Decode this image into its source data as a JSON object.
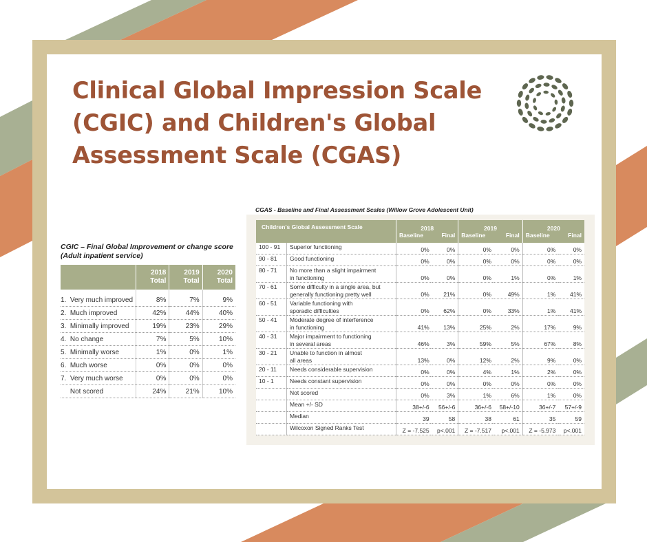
{
  "title": "Clinical Global Impression Scale (CGIC) and Children's Global Assessment Scale (CGAS)",
  "colors": {
    "title": "#9e5436",
    "frame": "#d3c49a",
    "table_header": "#a8ae8a",
    "stripe_orange": "#d88a5e",
    "stripe_green": "#a8b093",
    "logo": "#5e6650"
  },
  "logo_icon": "leaf-wreath-icon",
  "cgic": {
    "caption_line1": "CGIC – Final Global Improvement or change score",
    "caption_line2": "(Adult inpatient service)",
    "headers": [
      {
        "year": "2018",
        "label": "Total"
      },
      {
        "year": "2019",
        "label": "Total"
      },
      {
        "year": "2020",
        "label": "Total"
      }
    ],
    "rows": [
      {
        "label": "1.  Very much improved",
        "values": [
          "8%",
          "7%",
          "9%"
        ]
      },
      {
        "label": "2.  Much improved",
        "values": [
          "42%",
          "44%",
          "40%"
        ]
      },
      {
        "label": "3.  Minimally improved",
        "values": [
          "19%",
          "23%",
          "29%"
        ]
      },
      {
        "label": "4.  No change",
        "values": [
          "7%",
          "5%",
          "10%"
        ]
      },
      {
        "label": "5.  Minimally worse",
        "values": [
          "1%",
          "0%",
          "1%"
        ]
      },
      {
        "label": "6.  Much worse",
        "values": [
          "0%",
          "0%",
          "0%"
        ]
      },
      {
        "label": "7.  Very much worse",
        "values": [
          "0%",
          "0%",
          "0%"
        ]
      },
      {
        "label": "     Not scored",
        "values": [
          "24%",
          "21%",
          "10%"
        ]
      }
    ]
  },
  "cgas": {
    "caption": "CGAS - Baseline and Final Assessment Scales (Willow Grove Adolescent Unit)",
    "header_title": "Children's Global Assessment Scale",
    "years": [
      "2018",
      "2019",
      "2020"
    ],
    "sub_baseline": "Baseline",
    "sub_final": "Final",
    "rows": [
      {
        "range": "100 - 91",
        "d1": "Superior functioning",
        "d2": "",
        "v": [
          "0%",
          "0%",
          "0%",
          "0%",
          "0%",
          "0%"
        ]
      },
      {
        "range": "90 - 81",
        "d1": "Good functioning",
        "d2": "",
        "v": [
          "0%",
          "0%",
          "0%",
          "0%",
          "0%",
          "0%"
        ]
      },
      {
        "range": "80 - 71",
        "d1": "No more than a slight impairment",
        "d2": "in functioning",
        "v": [
          "0%",
          "0%",
          "0%",
          "1%",
          "0%",
          "1%"
        ]
      },
      {
        "range": "70 - 61",
        "d1": "Some difficulty in a single area, but",
        "d2": "generally functioning pretty well",
        "v": [
          "0%",
          "21%",
          "0%",
          "49%",
          "1%",
          "41%"
        ]
      },
      {
        "range": "60 - 51",
        "d1": "Variable functioning with",
        "d2": "sporadic difficulties",
        "v": [
          "0%",
          "62%",
          "0%",
          "33%",
          "1%",
          "41%"
        ]
      },
      {
        "range": "50 - 41",
        "d1": "Moderate degree of interference",
        "d2": "in functioning",
        "v": [
          "41%",
          "13%",
          "25%",
          "2%",
          "17%",
          "9%"
        ]
      },
      {
        "range": "40 - 31",
        "d1": "Major impairment to functioning",
        "d2": "in several areas",
        "v": [
          "46%",
          "3%",
          "59%",
          "5%",
          "67%",
          "8%"
        ]
      },
      {
        "range": "30 - 21",
        "d1": "Unable to function in almost",
        "d2": "all areas",
        "v": [
          "13%",
          "0%",
          "12%",
          "2%",
          "9%",
          "0%"
        ]
      },
      {
        "range": "20 - 11",
        "d1": "Needs considerable supervision",
        "d2": "",
        "v": [
          "0%",
          "0%",
          "4%",
          "1%",
          "2%",
          "0%"
        ]
      },
      {
        "range": "10 - 1",
        "d1": "Needs constant supervision",
        "d2": "",
        "v": [
          "0%",
          "0%",
          "0%",
          "0%",
          "0%",
          "0%"
        ]
      },
      {
        "range": "",
        "d1": "Not scored",
        "d2": "",
        "v": [
          "0%",
          "3%",
          "1%",
          "6%",
          "1%",
          "0%"
        ]
      },
      {
        "range": "",
        "d1": "Mean +/- SD",
        "d2": "",
        "v": [
          "38+/-6",
          "56+/-6",
          "36+/-6",
          "58+/-10",
          "36+/-7",
          "57+/-9"
        ]
      },
      {
        "range": "",
        "d1": "Median",
        "d2": "",
        "v": [
          "39",
          "58",
          "38",
          "61",
          "35",
          "59"
        ]
      },
      {
        "range": "",
        "d1": "Wilcoxon Signed Ranks Test",
        "d2": "",
        "v": [
          "Z = -7.525",
          "p<.001",
          "Z = -7.517",
          "p<.001",
          "Z = -5.973",
          "p<.001"
        ]
      }
    ]
  }
}
